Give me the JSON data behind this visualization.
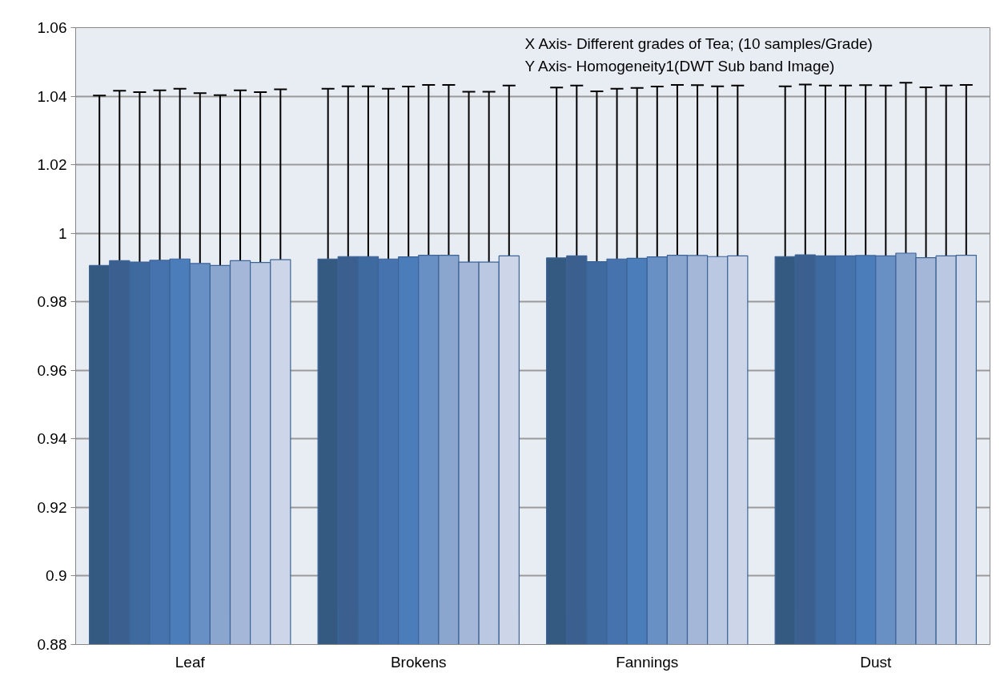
{
  "chart_data": {
    "type": "bar",
    "categories": [
      "Leaf",
      "Brokens",
      "Fannings",
      "Dust"
    ],
    "series": [
      {
        "color": "#345a82",
        "values": [
          0.9906,
          0.9925,
          0.9928,
          0.9932
        ],
        "errors": [
          0.0496,
          0.0497,
          0.0497,
          0.0497
        ]
      },
      {
        "color": "#3b5f8f",
        "values": [
          0.992,
          0.9932,
          0.9934,
          0.9937
        ],
        "errors": [
          0.0496,
          0.0497,
          0.0497,
          0.0497
        ]
      },
      {
        "color": "#3e6aa0",
        "values": [
          0.9916,
          0.9932,
          0.9917,
          0.9934
        ],
        "errors": [
          0.0496,
          0.0497,
          0.0497,
          0.0497
        ]
      },
      {
        "color": "#4673ae",
        "values": [
          0.9921,
          0.9925,
          0.9925,
          0.9934
        ],
        "errors": [
          0.0496,
          0.0497,
          0.0497,
          0.0497
        ]
      },
      {
        "color": "#4a7dba",
        "values": [
          0.9925,
          0.9931,
          0.9927,
          0.9935
        ],
        "errors": [
          0.0497,
          0.0497,
          0.0497,
          0.0497
        ]
      },
      {
        "color": "#6890c5",
        "values": [
          0.9912,
          0.9936,
          0.9931,
          0.9934
        ],
        "errors": [
          0.0497,
          0.0497,
          0.0497,
          0.0497
        ]
      },
      {
        "color": "#8aa5ce",
        "values": [
          0.9906,
          0.9936,
          0.9936,
          0.9942
        ],
        "errors": [
          0.0497,
          0.0497,
          0.0497,
          0.0497
        ]
      },
      {
        "color": "#a4b7d8",
        "values": [
          0.992,
          0.9916,
          0.9935,
          0.9929
        ],
        "errors": [
          0.0497,
          0.0497,
          0.0497,
          0.0497
        ]
      },
      {
        "color": "#bac8e2",
        "values": [
          0.9915,
          0.9916,
          0.9932,
          0.9934
        ],
        "errors": [
          0.0497,
          0.0497,
          0.0497,
          0.0497
        ]
      },
      {
        "color": "#cdd6e8",
        "values": [
          0.9923,
          0.9934,
          0.9934,
          0.9936
        ],
        "errors": [
          0.0497,
          0.0497,
          0.0497,
          0.0497
        ]
      }
    ],
    "ylim": [
      0.88,
      1.06
    ],
    "yticks": [
      0.88,
      0.9,
      0.92,
      0.94,
      0.96,
      0.98,
      1,
      1.02,
      1.04,
      1.06
    ],
    "grid": "y",
    "annotations": [
      "X Axis- Different grades of Tea; (10 samples/Grade)",
      "Y Axis- Homogeneity1(DWT Sub band Image)"
    ]
  }
}
